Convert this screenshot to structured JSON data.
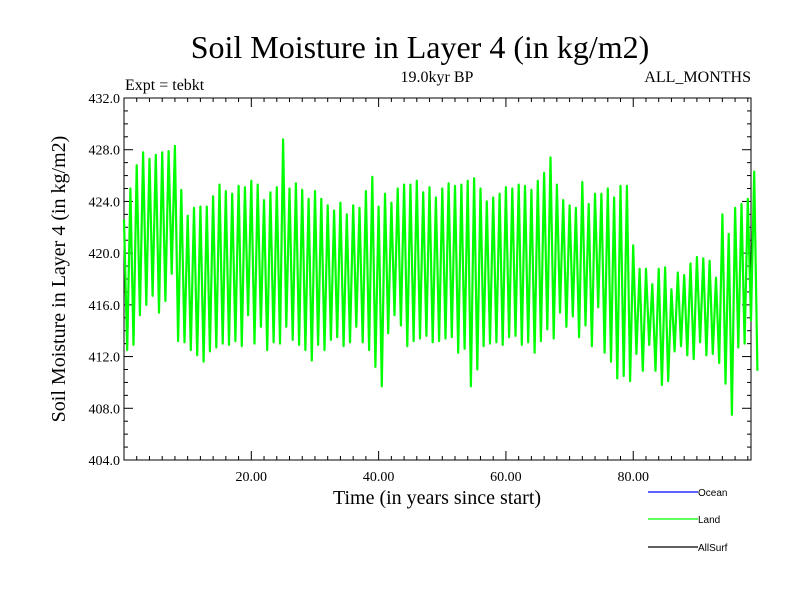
{
  "chart_data": {
    "type": "line",
    "title": "Soil Moisture in Layer 4 (in kg/m2)",
    "subtitle_left": "Expt = tebkt",
    "subtitle_center": "19.0kyr BP",
    "subtitle_right": "ALL_MONTHS",
    "xlabel": "Time (in years since start)",
    "ylabel": "Soil Moisture in Layer 4 (in kg/m2)",
    "xlim": [
      0,
      98.5
    ],
    "ylim": [
      404.0,
      432.0
    ],
    "x_ticks": [
      20,
      40,
      60,
      80
    ],
    "x_tick_labels": [
      "20.00",
      "40.00",
      "60.00",
      "80.00"
    ],
    "y_ticks": [
      404,
      408,
      412,
      416,
      420,
      424,
      428,
      432
    ],
    "y_tick_labels": [
      "404.0",
      "408.0",
      "412.0",
      "416.0",
      "420.0",
      "424.0",
      "428.0",
      "432.0"
    ],
    "x_minor_step": 2,
    "y_minor_step": 1,
    "grid": false,
    "legend_position": "bottom-right",
    "series": [
      {
        "name": "Ocean",
        "color": "#0000ff",
        "values": []
      },
      {
        "name": "Land",
        "color": "#00ff00",
        "x_start": 0,
        "x_step": 1,
        "samples_per_year": 2,
        "values": [
          422.6,
          412.5,
          425.0,
          412.9,
          426.8,
          415.2,
          427.8,
          416.0,
          427.3,
          416.7,
          427.6,
          415.4,
          427.8,
          416.3,
          427.9,
          418.4,
          428.3,
          413.2,
          424.9,
          413.1,
          422.9,
          412.5,
          423.5,
          412.1,
          423.6,
          411.6,
          423.6,
          412.4,
          424.4,
          412.7,
          425.3,
          413.0,
          424.8,
          412.9,
          424.6,
          413.2,
          425.2,
          412.8,
          425.1,
          415.2,
          425.6,
          413.0,
          425.3,
          414.3,
          424.1,
          412.5,
          424.7,
          413.1,
          425.1,
          413.0,
          428.8,
          414.3,
          425.0,
          413.3,
          425.4,
          412.9,
          424.9,
          412.5,
          424.2,
          411.7,
          424.8,
          412.9,
          424.2,
          412.5,
          423.7,
          413.3,
          423.3,
          413.5,
          423.9,
          412.8,
          423.0,
          413.1,
          423.7,
          414.3,
          423.5,
          413.1,
          424.8,
          412.5,
          425.9,
          411.2,
          423.6,
          409.7,
          424.6,
          413.8,
          423.9,
          415.2,
          425.0,
          414.4,
          425.3,
          412.8,
          425.3,
          413.2,
          425.6,
          413.4,
          424.7,
          413.6,
          425.1,
          413.1,
          424.3,
          413.2,
          425.0,
          413.4,
          425.4,
          413.5,
          425.2,
          412.3,
          425.3,
          412.6,
          425.6,
          409.7,
          425.8,
          411.0,
          425.0,
          412.8,
          424.0,
          413.0,
          424.3,
          413.1,
          424.6,
          412.9,
          425.1,
          413.5,
          425.0,
          413.6,
          425.3,
          412.9,
          425.2,
          413.1,
          424.9,
          412.3,
          425.6,
          413.2,
          426.2,
          414.1,
          427.4,
          413.4,
          425.3,
          415.4,
          424.1,
          414.3,
          423.7,
          415.1,
          423.5,
          413.5,
          425.5,
          414.4,
          423.8,
          412.8,
          424.6,
          415.8,
          424.6,
          412.3,
          425.0,
          411.6,
          424.3,
          410.3,
          425.2,
          410.5,
          425.2,
          410.1,
          420.6,
          412.2,
          418.8,
          410.9,
          418.8,
          412.9,
          417.6,
          410.9,
          418.8,
          409.8,
          418.9,
          410.1,
          417.2,
          412.4,
          418.5,
          412.8,
          418.3,
          412.1,
          419.2,
          411.8,
          419.7,
          413.1,
          419.6,
          412.1,
          419.4,
          412.2,
          418.1,
          411.5,
          423.0,
          409.9,
          421.5,
          407.5,
          423.5,
          412.7,
          423.8,
          413.0,
          424.2,
          414.8,
          426.3,
          410.9
        ]
      },
      {
        "name": "AllSurf",
        "color": "#000000",
        "values": []
      }
    ]
  }
}
